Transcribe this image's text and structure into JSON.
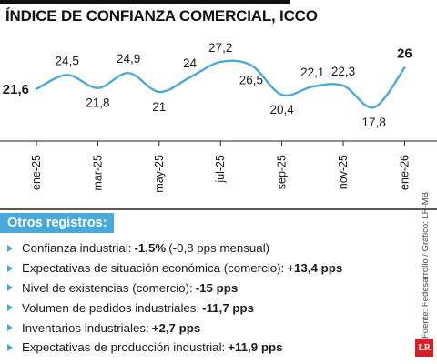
{
  "title": "ÍNDICE DE CONFIANZA COMERCIAL, ICCO",
  "chart_data": {
    "type": "line",
    "title": "ÍNDICE DE CONFIANZA COMERCIAL, ICCO",
    "x_ticks": [
      "ene-25",
      "mar-25",
      "may-25",
      "jul-25",
      "sep-25",
      "nov-25",
      "ene-26"
    ],
    "series": [
      {
        "x": [
          "ene-25",
          "feb-25",
          "mar-25",
          "abr-25",
          "may-25",
          "jun-25",
          "jul-25",
          "ago-25",
          "sep-25",
          "oct-25",
          "nov-25",
          "dic-25",
          "ene-26"
        ],
        "values": [
          21.6,
          24.5,
          21.8,
          24.9,
          21,
          24,
          27.2,
          26.5,
          20.4,
          22.1,
          22.3,
          17.8,
          26
        ],
        "labels": [
          "21,6",
          "24,5",
          "21,8",
          "24,9",
          "21",
          "24",
          "27,2",
          "26,5",
          "20,4",
          "22,1",
          "22,3",
          "17,8",
          "26"
        ]
      }
    ],
    "line_color": "#4aa9d8",
    "grid": false,
    "legend": "none"
  },
  "section_header": "Otros registros:",
  "records": [
    {
      "label": "Confianza industrial:",
      "value": "-1,5%",
      "extra": "(-0,8 pps mensual)"
    },
    {
      "label": "Expectativas de situación económica (comercio):",
      "value": "+13,4 pps",
      "extra": ""
    },
    {
      "label": "Nivel de existencias (comercio):",
      "value": "-15 pps",
      "extra": ""
    },
    {
      "label": "Volumen de pedidos industriales:",
      "value": "-11,7 pps",
      "extra": ""
    },
    {
      "label": "Inventarios industriales:",
      "value": "+2,7 pps",
      "extra": ""
    },
    {
      "label": "Expectativas de producción industrial:",
      "value": "+11,9 pps",
      "extra": ""
    }
  ],
  "source": "Fuente: Fedesarrollo / Gráfico: LR-MB",
  "logo": "LR"
}
